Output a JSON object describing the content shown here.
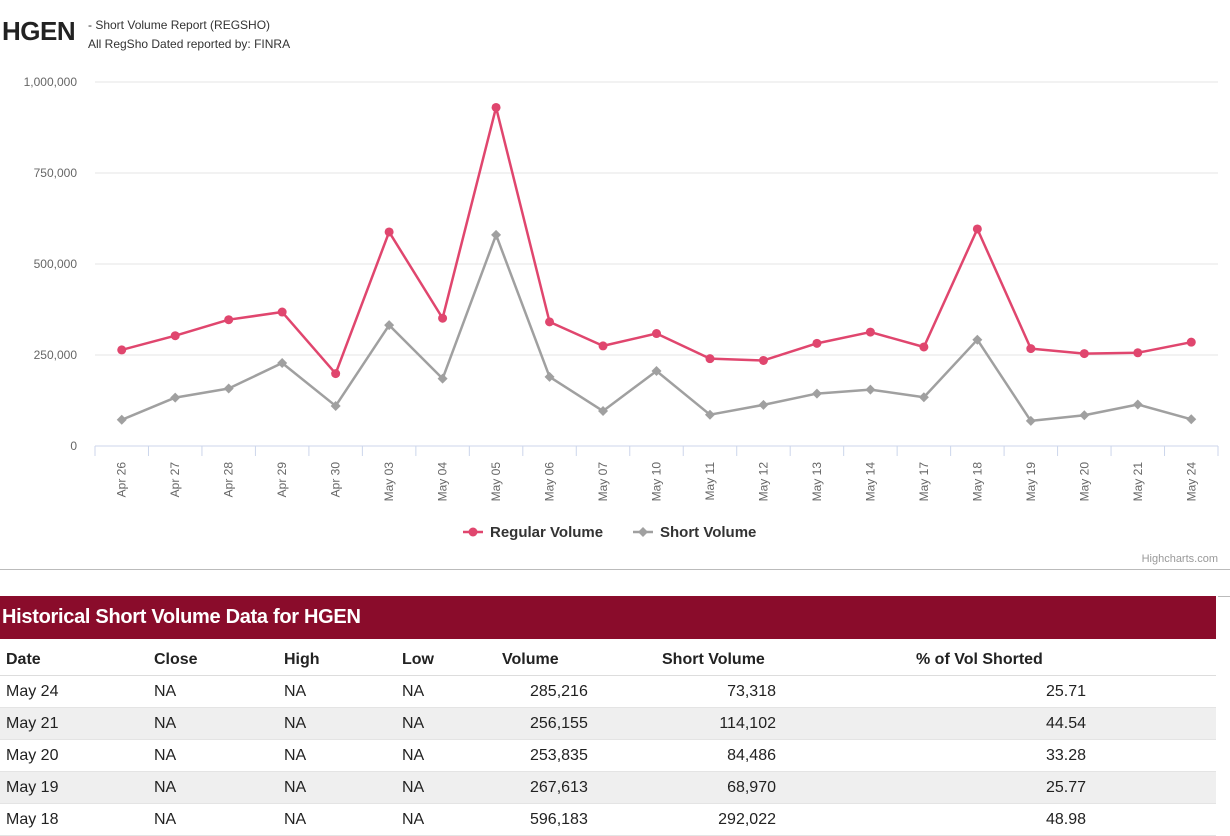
{
  "header": {
    "ticker": "HGEN",
    "report_name": "- Short Volume Report  (REGSHO)",
    "reported_by": "All RegSho Dated reported by: FINRA"
  },
  "chart_data": {
    "type": "line",
    "title": "",
    "xlabel": "",
    "ylabel": "",
    "ylim": [
      0,
      1000000
    ],
    "y_ticks": [
      "0",
      "250,000",
      "500,000",
      "750,000",
      "1,000,000"
    ],
    "y_tick_values": [
      0,
      250000,
      500000,
      750000,
      1000000
    ],
    "categories": [
      "Apr 26",
      "Apr 27",
      "Apr 28",
      "Apr 29",
      "Apr 30",
      "May 03",
      "May 04",
      "May 05",
      "May 06",
      "May 07",
      "May 10",
      "May 11",
      "May 12",
      "May 13",
      "May 14",
      "May 17",
      "May 18",
      "May 19",
      "May 20",
      "May 21",
      "May 24"
    ],
    "series": [
      {
        "name": "Regular Volume",
        "color": "#e0466e",
        "marker": "circle",
        "values": [
          264000,
          303000,
          347000,
          368000,
          199000,
          588000,
          351000,
          930000,
          341000,
          275000,
          309000,
          240000,
          235000,
          282000,
          313000,
          272000,
          596183,
          267613,
          253835,
          256155,
          285216
        ]
      },
      {
        "name": "Short Volume",
        "color": "#a0a0a0",
        "marker": "diamond",
        "values": [
          72000,
          133000,
          158000,
          228000,
          110000,
          332000,
          185000,
          580000,
          190000,
          96000,
          206000,
          86000,
          113000,
          144000,
          155000,
          134000,
          292022,
          68970,
          84486,
          114102,
          73318
        ]
      }
    ],
    "legend_position": "bottom-center",
    "credit": "Highcharts.com"
  },
  "table": {
    "title": "Historical Short Volume Data for HGEN",
    "columns": [
      "Date",
      "Close",
      "High",
      "Low",
      "Volume",
      "Short Volume",
      "% of Vol Shorted"
    ],
    "rows": [
      [
        "May 24",
        "NA",
        "NA",
        "NA",
        "285,216",
        "73,318",
        "25.71"
      ],
      [
        "May 21",
        "NA",
        "NA",
        "NA",
        "256,155",
        "114,102",
        "44.54"
      ],
      [
        "May 20",
        "NA",
        "NA",
        "NA",
        "253,835",
        "84,486",
        "33.28"
      ],
      [
        "May 19",
        "NA",
        "NA",
        "NA",
        "267,613",
        "68,970",
        "25.77"
      ],
      [
        "May 18",
        "NA",
        "NA",
        "NA",
        "596,183",
        "292,022",
        "48.98"
      ]
    ]
  }
}
